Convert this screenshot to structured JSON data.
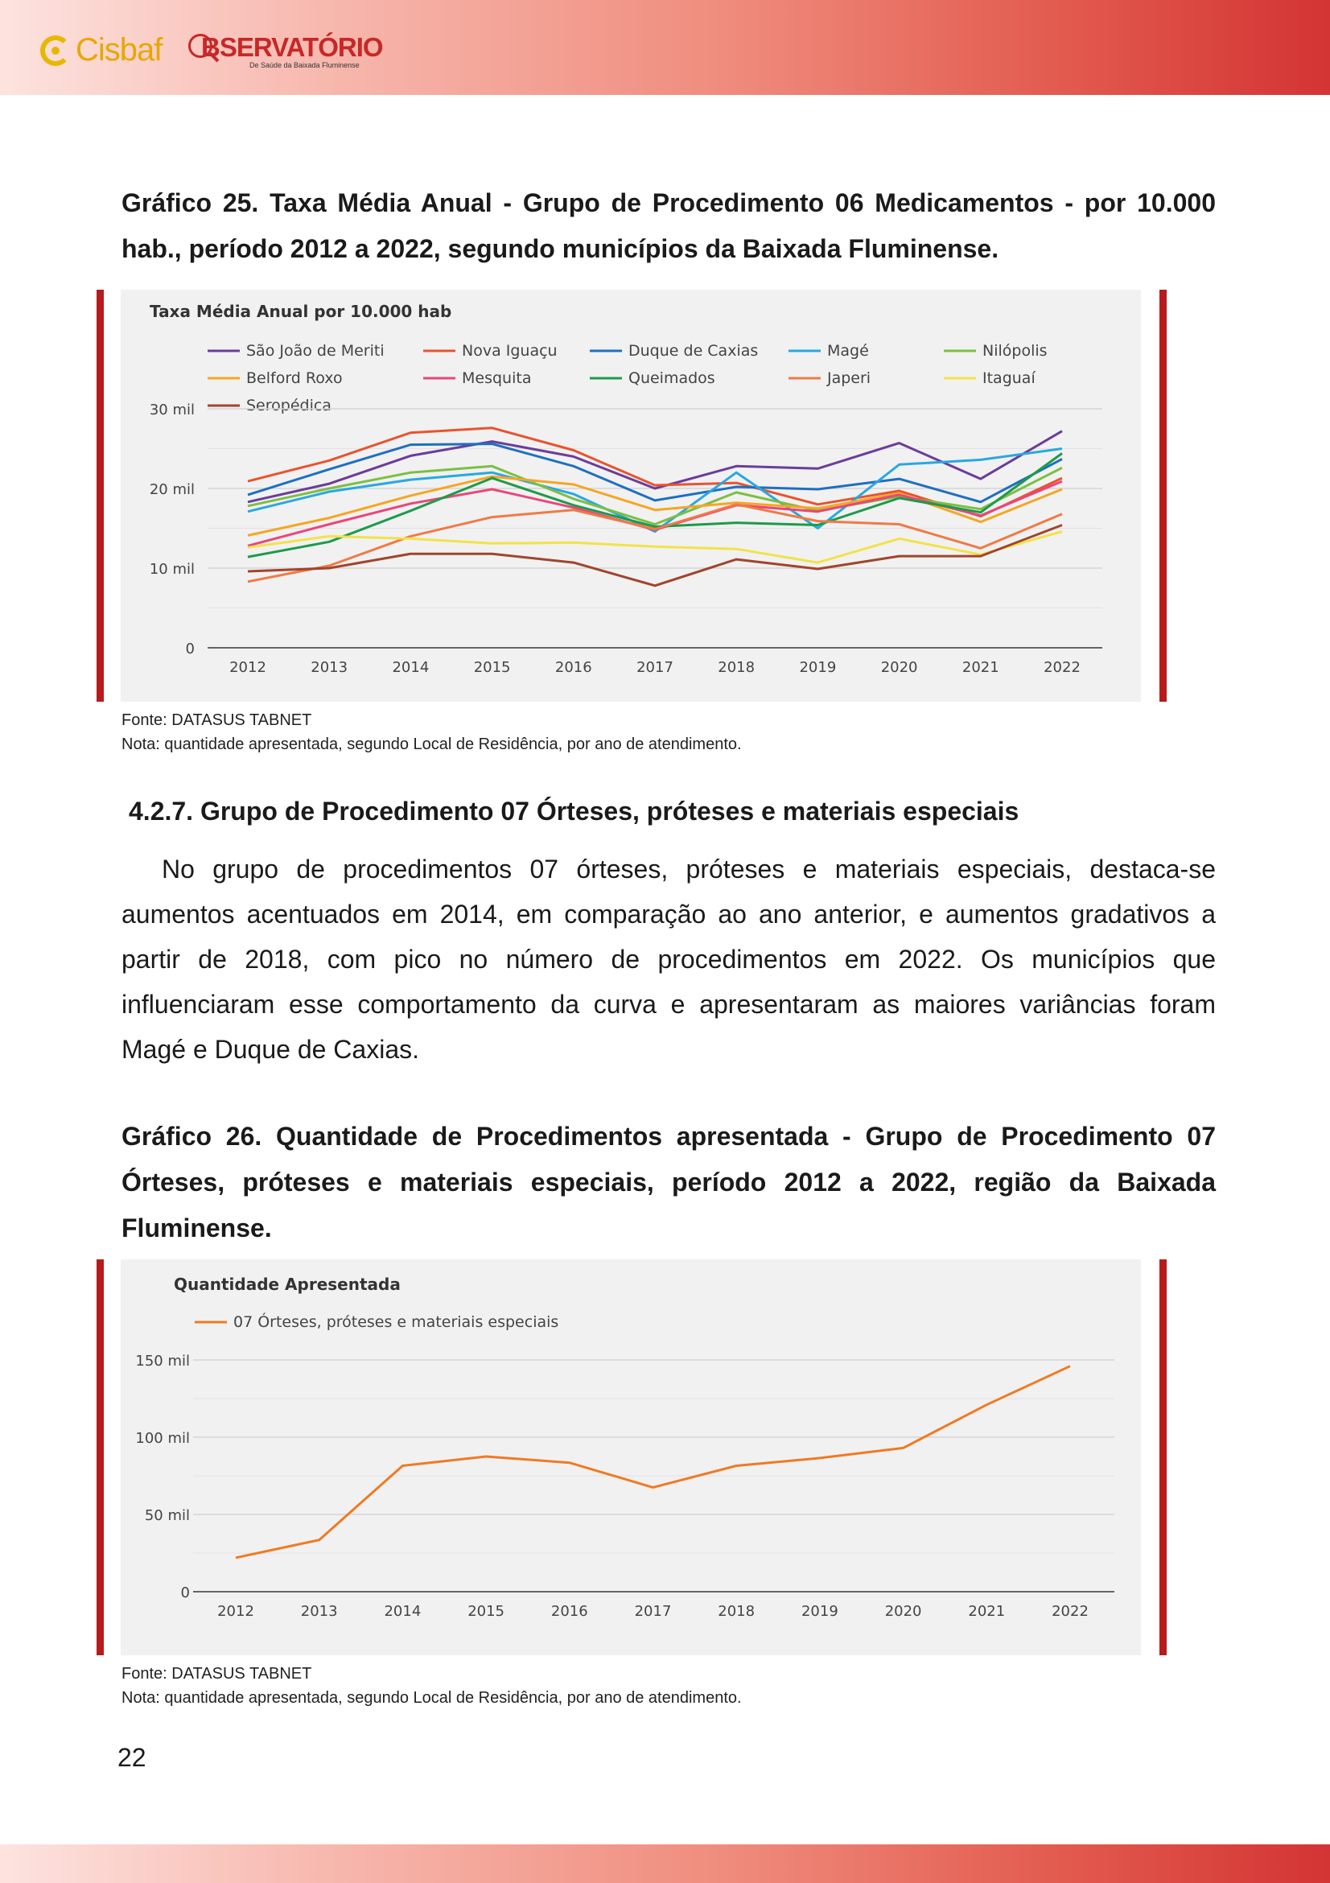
{
  "header": {
    "logo_cisbaf_text": "Cisbaf",
    "logo_observatorio_text": "BSERVATÓRIO",
    "logo_observatorio_sub": "De Saúde da Baixada Fluminense"
  },
  "figure25": {
    "caption": "Gráfico 25. Taxa Média Anual - Grupo de Procedimento 06 Medicamentos - por 10.000 hab., período 2012 a 2022, segundo municípios da Baixada Fluminense.",
    "source": "Fonte: DATASUS TABNET",
    "note": "Nota: quantidade apresentada, segundo Local de Residência, por ano de atendimento."
  },
  "section": {
    "heading": "4.2.7. Grupo de Procedimento 07 Órteses, próteses e materiais especiais",
    "paragraph": "No grupo de procedimentos 07 órteses, próteses e materiais especiais, destaca-se aumentos acentuados em 2014, em comparação ao ano anterior, e aumentos gradativos a partir de 2018, com pico no número de procedimentos em 2022. Os municípios que influenciaram esse comportamento da curva e apresentaram as maiores variâncias foram Magé e Duque de Caxias."
  },
  "figure26": {
    "caption": "Gráfico 26. Quantidade de Procedimentos apresentada - Grupo de Procedimento 07 Órteses, próteses e materiais especiais, período 2012 a 2022, região da Baixada Fluminense.",
    "source": "Fonte: DATASUS TABNET",
    "note": "Nota: quantidade apresentada, segundo Local de Residência, por ano de atendimento."
  },
  "page_number": "22",
  "chart_data": [
    {
      "type": "line",
      "title": "Taxa Média Anual por 10.000 hab",
      "x": [
        "2012",
        "2013",
        "2014",
        "2015",
        "2016",
        "2017",
        "2018",
        "2019",
        "2020",
        "2021",
        "2022"
      ],
      "y_ticks": [
        {
          "value": 0,
          "label": "0"
        },
        {
          "value": 10000,
          "label": "10 mil"
        },
        {
          "value": 20000,
          "label": "20 mil"
        },
        {
          "value": 30000,
          "label": "30 mil"
        }
      ],
      "ylim": [
        0,
        30000
      ],
      "grid": true,
      "legend_position": "top",
      "series": [
        {
          "name": "São João de Meriti",
          "color": "#6a3d9a",
          "values": [
            18300,
            20600,
            24100,
            25900,
            24000,
            20000,
            22800,
            22500,
            25700,
            21200,
            27200
          ]
        },
        {
          "name": "Nova Iguaçu",
          "color": "#e8532f",
          "values": [
            20900,
            23500,
            27000,
            27600,
            24800,
            20400,
            20700,
            18000,
            19700,
            16500,
            21300
          ]
        },
        {
          "name": "Duque de Caxias",
          "color": "#1f6fc0",
          "values": [
            19200,
            22400,
            25500,
            25600,
            22800,
            18500,
            20200,
            19900,
            21200,
            18300,
            23700
          ]
        },
        {
          "name": "Magé",
          "color": "#29a8e0",
          "values": [
            17100,
            19600,
            21100,
            22000,
            19300,
            14600,
            22000,
            15000,
            23000,
            23600,
            25000
          ]
        },
        {
          "name": "Nilópolis",
          "color": "#7cbf43",
          "values": [
            17800,
            20000,
            22000,
            22800,
            18700,
            15500,
            19500,
            17200,
            19000,
            17400,
            22600
          ]
        },
        {
          "name": "Belford Roxo",
          "color": "#f5a623",
          "values": [
            14100,
            16300,
            19100,
            21500,
            20500,
            17300,
            18200,
            17500,
            19400,
            15800,
            19900
          ]
        },
        {
          "name": "Mesquita",
          "color": "#e8477a",
          "values": [
            12800,
            15500,
            18100,
            19900,
            17600,
            14800,
            17900,
            17100,
            19200,
            16600,
            20900
          ]
        },
        {
          "name": "Queimados",
          "color": "#1e9a4a",
          "values": [
            11400,
            13300,
            17200,
            21300,
            17900,
            15200,
            15700,
            15400,
            18800,
            17000,
            24400
          ]
        },
        {
          "name": "Japeri",
          "color": "#f07a45",
          "values": [
            8300,
            10300,
            14000,
            16400,
            17300,
            14900,
            18000,
            15900,
            15500,
            12500,
            16800
          ]
        },
        {
          "name": "Itaguaí",
          "color": "#f2e24a",
          "values": [
            12600,
            14000,
            13700,
            13100,
            13200,
            12700,
            12400,
            10700,
            13700,
            11700,
            14600
          ]
        },
        {
          "name": "Seropédica",
          "color": "#a0452c",
          "values": [
            9600,
            10000,
            11800,
            11800,
            10700,
            7800,
            11100,
            9900,
            11500,
            11500,
            15400
          ]
        }
      ]
    },
    {
      "type": "line",
      "title": "Quantidade Apresentada",
      "x": [
        "2012",
        "2013",
        "2014",
        "2015",
        "2016",
        "2017",
        "2018",
        "2019",
        "2020",
        "2021",
        "2022"
      ],
      "y_ticks": [
        {
          "value": 0,
          "label": "0"
        },
        {
          "value": 50000,
          "label": "50 mil"
        },
        {
          "value": 100000,
          "label": "100 mil"
        },
        {
          "value": 150000,
          "label": "150 mil"
        }
      ],
      "ylim": [
        0,
        150000
      ],
      "grid": true,
      "legend_position": "top",
      "series": [
        {
          "name": "07 Órteses, próteses e materiais especiais",
          "color": "#f07a22",
          "values": [
            22000,
            33500,
            81500,
            87500,
            83500,
            67500,
            81500,
            86500,
            93000,
            121000,
            146000
          ]
        }
      ]
    }
  ]
}
